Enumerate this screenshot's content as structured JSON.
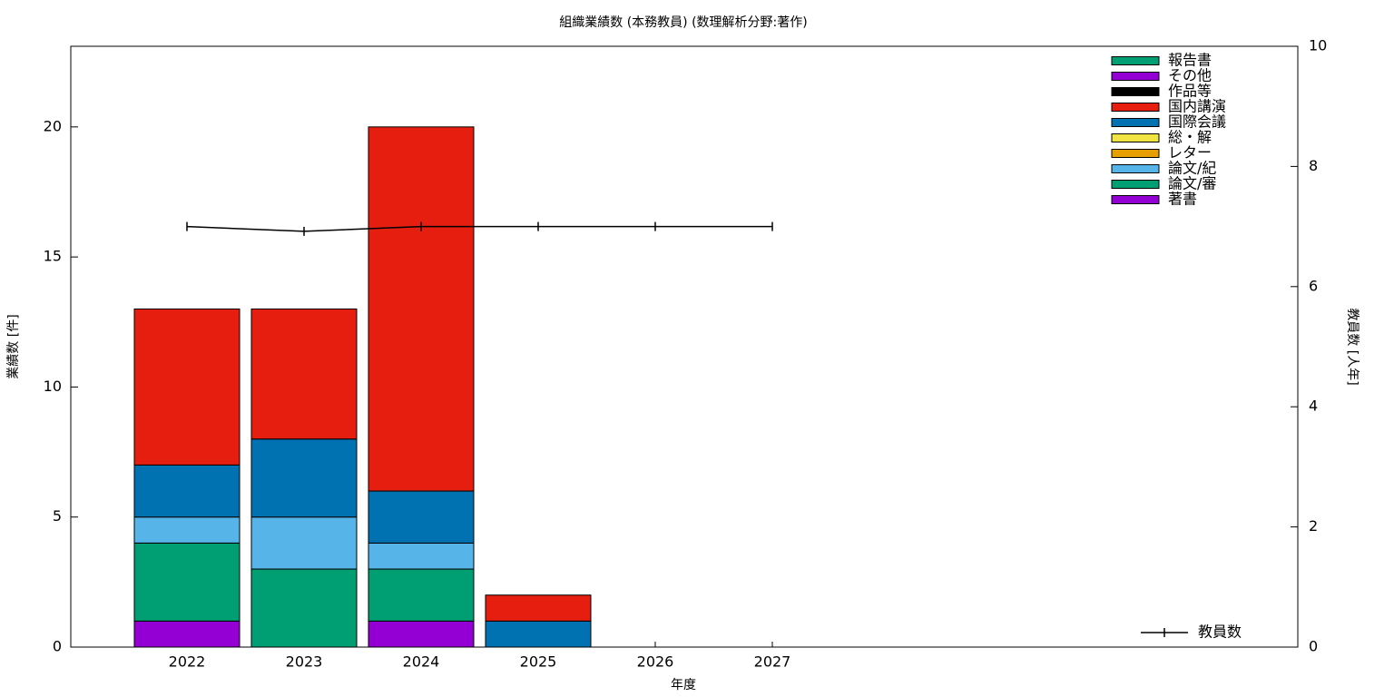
{
  "chart_data": {
    "type": "bar",
    "stacked": true,
    "title": "組織業績数 (本務教員) (数理解析分野:著作)",
    "x_label": "年度",
    "y_label": "業績数 [件]",
    "y2_label": "教員数 [人年]",
    "categories": [
      "2022",
      "2023",
      "2024",
      "2025",
      "2026",
      "2027"
    ],
    "series": [
      {
        "name": "著書",
        "color": "#9400d3",
        "values": [
          1,
          0,
          1,
          0,
          0,
          0
        ]
      },
      {
        "name": "論文/審",
        "color": "#009e73",
        "values": [
          3,
          3,
          2,
          0,
          0,
          0
        ]
      },
      {
        "name": "論文/紀",
        "color": "#56b4e9",
        "values": [
          1,
          2,
          1,
          0,
          0,
          0
        ]
      },
      {
        "name": "レター",
        "color": "#e69f00",
        "values": [
          0,
          0,
          0,
          0,
          0,
          0
        ]
      },
      {
        "name": "総・解",
        "color": "#f0e442",
        "values": [
          0,
          0,
          0,
          0,
          0,
          0
        ]
      },
      {
        "name": "国際会議",
        "color": "#0072b2",
        "values": [
          2,
          3,
          2,
          1,
          0,
          0
        ]
      },
      {
        "name": "国内講演",
        "color": "#e51e10",
        "values": [
          6,
          5,
          14,
          1,
          0,
          0
        ]
      },
      {
        "name": "作品等",
        "color": "#000000",
        "values": [
          0,
          0,
          0,
          0,
          0,
          0
        ]
      },
      {
        "name": "その他",
        "color": "#9400d3",
        "values": [
          0,
          0,
          0,
          0,
          0,
          0
        ]
      },
      {
        "name": "報告書",
        "color": "#009e73",
        "values": [
          0,
          0,
          0,
          0,
          0,
          0
        ]
      },
      {
        "name": "教員数",
        "type": "line",
        "axis": "y2",
        "color": "#000000",
        "values": [
          7,
          6.92,
          7,
          7,
          7,
          7
        ]
      }
    ],
    "ylim": [
      0,
      23.1
    ],
    "yticks": [
      0,
      5,
      10,
      15,
      20
    ],
    "y2lim": [
      0,
      10
    ],
    "y2ticks": [
      0,
      2,
      4,
      6,
      8,
      10
    ],
    "legend": "top right"
  }
}
